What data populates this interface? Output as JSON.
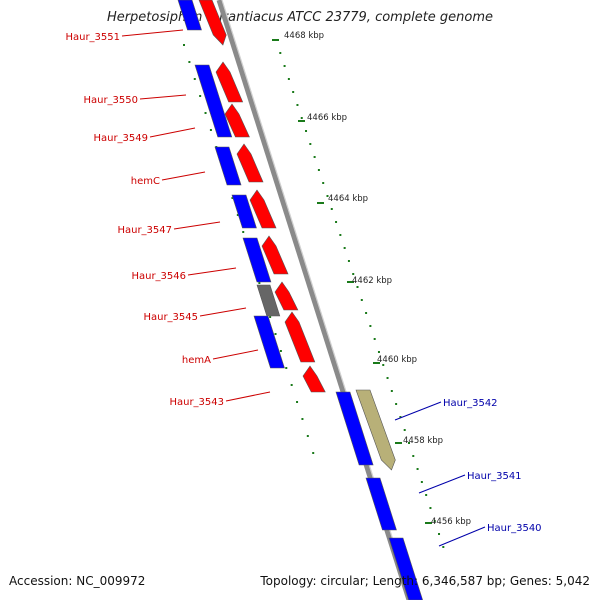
{
  "title": "Herpetosiphon aurantiacus ATCC 23779, complete genome",
  "footer": {
    "accession": "Accession: NC_009972",
    "summary": "Topology: circular; Length: 6,346,587 bp; Genes: 5,042"
  },
  "scale_labels": [
    "4468 kbp",
    "4466 kbp",
    "4464 kbp",
    "4462 kbp",
    "4460 kbp",
    "4458 kbp",
    "4456 kbp"
  ],
  "colors": {
    "forward_gene": "#ff0000",
    "reverse_gene": "#0000ff",
    "pseudo_gene": "#666666",
    "other_feature": "#b8b078",
    "backbone": "#8a8a8a",
    "ruler": "#1a7a1a",
    "left_label": "#cc0000",
    "right_label": "#0000aa"
  },
  "left_labels": [
    "Haur_3551",
    "Haur_3550",
    "Haur_3549",
    "hemC",
    "Haur_3547",
    "Haur_3546",
    "Haur_3545",
    "hemA",
    "Haur_3543"
  ],
  "right_labels": [
    "Haur_3542",
    "Haur_3541",
    "Haur_3540"
  ]
}
